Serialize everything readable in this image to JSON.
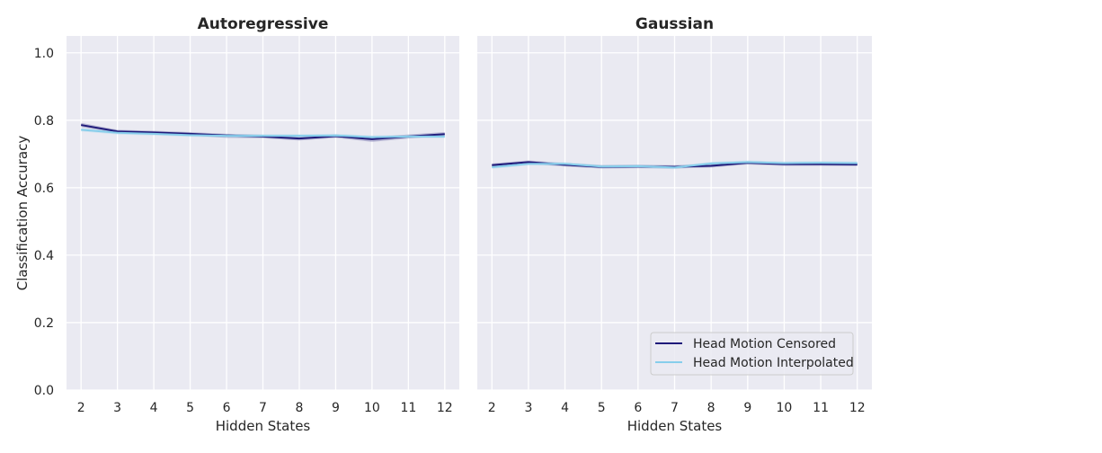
{
  "chart_data": [
    {
      "type": "line",
      "title": "Autoregressive",
      "xlabel": "Hidden States",
      "ylabel": "Classification Accuracy",
      "x": [
        2,
        3,
        4,
        5,
        6,
        7,
        8,
        9,
        10,
        11,
        12
      ],
      "xticks": [
        "2",
        "3",
        "4",
        "5",
        "6",
        "7",
        "8",
        "9",
        "10",
        "11",
        "12"
      ],
      "xlim": [
        1.6,
        12.4
      ],
      "ylim": [
        0.0,
        1.05
      ],
      "yticks": [
        "0.0",
        "0.2",
        "0.4",
        "0.6",
        "0.8",
        "1.0"
      ],
      "ytick_values": [
        0.0,
        0.2,
        0.4,
        0.6,
        0.8,
        1.0
      ],
      "grid": true,
      "series": [
        {
          "name": "Head Motion Censored",
          "color": "#1f1a7a",
          "values": [
            0.786,
            0.767,
            0.764,
            0.76,
            0.755,
            0.752,
            0.746,
            0.753,
            0.744,
            0.752,
            0.759
          ],
          "band_low": [
            0.78,
            0.762,
            0.759,
            0.755,
            0.748,
            0.747,
            0.74,
            0.748,
            0.736,
            0.746,
            0.754
          ],
          "band_high": [
            0.792,
            0.772,
            0.769,
            0.765,
            0.76,
            0.757,
            0.752,
            0.758,
            0.75,
            0.758,
            0.765
          ]
        },
        {
          "name": "Head Motion Interpolated",
          "color": "#87ceeb",
          "values": [
            0.772,
            0.763,
            0.76,
            0.756,
            0.754,
            0.754,
            0.754,
            0.755,
            0.75,
            0.752,
            0.752
          ],
          "band_low": [
            0.767,
            0.758,
            0.755,
            0.751,
            0.749,
            0.749,
            0.749,
            0.75,
            0.745,
            0.747,
            0.747
          ],
          "band_high": [
            0.777,
            0.768,
            0.765,
            0.761,
            0.759,
            0.759,
            0.759,
            0.76,
            0.755,
            0.757,
            0.757
          ]
        }
      ]
    },
    {
      "type": "line",
      "title": "Gaussian",
      "xlabel": "Hidden States",
      "ylabel": "",
      "x": [
        2,
        3,
        4,
        5,
        6,
        7,
        8,
        9,
        10,
        11,
        12
      ],
      "xticks": [
        "2",
        "3",
        "4",
        "5",
        "6",
        "7",
        "8",
        "9",
        "10",
        "11",
        "12"
      ],
      "xlim": [
        1.6,
        12.4
      ],
      "ylim": [
        0.0,
        1.05
      ],
      "yticks": [
        "0.0",
        "0.2",
        "0.4",
        "0.6",
        "0.8",
        "1.0"
      ],
      "ytick_values": [
        0.0,
        0.2,
        0.4,
        0.6,
        0.8,
        1.0
      ],
      "grid": true,
      "legend_position": "lower-right",
      "series": [
        {
          "name": "Head Motion Censored",
          "color": "#1f1a7a",
          "values": [
            0.667,
            0.676,
            0.668,
            0.662,
            0.663,
            0.662,
            0.665,
            0.674,
            0.67,
            0.67,
            0.669
          ],
          "band_low": [
            0.662,
            0.671,
            0.663,
            0.657,
            0.658,
            0.657,
            0.66,
            0.669,
            0.665,
            0.665,
            0.664
          ],
          "band_high": [
            0.672,
            0.681,
            0.673,
            0.667,
            0.668,
            0.667,
            0.67,
            0.679,
            0.675,
            0.675,
            0.674
          ]
        },
        {
          "name": "Head Motion Interpolated",
          "color": "#87ceeb",
          "values": [
            0.661,
            0.671,
            0.671,
            0.663,
            0.664,
            0.66,
            0.672,
            0.676,
            0.673,
            0.674,
            0.673
          ],
          "band_low": [
            0.656,
            0.666,
            0.666,
            0.658,
            0.659,
            0.655,
            0.667,
            0.671,
            0.668,
            0.669,
            0.668
          ],
          "band_high": [
            0.666,
            0.676,
            0.676,
            0.668,
            0.669,
            0.665,
            0.677,
            0.681,
            0.678,
            0.679,
            0.678
          ]
        }
      ]
    }
  ],
  "legend": {
    "items": [
      {
        "label": "Head Motion Censored",
        "color": "#1f1a7a"
      },
      {
        "label": "Head Motion Interpolated",
        "color": "#87ceeb"
      }
    ]
  }
}
